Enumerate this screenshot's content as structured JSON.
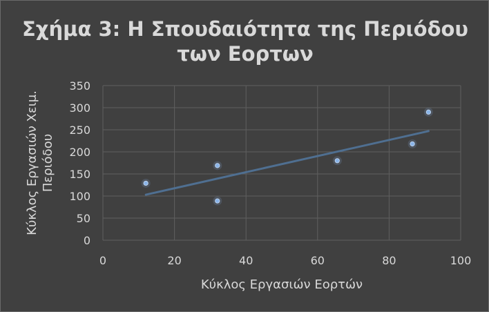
{
  "chart_data": {
    "type": "scatter",
    "title_lines": [
      "Σχήμα 3: Η Σπουδαιότητα της Περιόδου",
      "των Εορτων"
    ],
    "xlabel": "Κύκλος Εργασιών Εορτών",
    "ylabel_lines": [
      "Κύκλος Εργασιών Χειμ.",
      "Περιόδου"
    ],
    "xlim": [
      0,
      100
    ],
    "ylim": [
      0,
      350
    ],
    "x_ticks": [
      0,
      20,
      40,
      60,
      80,
      100
    ],
    "y_ticks": [
      0,
      50,
      100,
      150,
      200,
      250,
      300,
      350
    ],
    "grid": true,
    "points": [
      {
        "x": 12,
        "y": 129
      },
      {
        "x": 32,
        "y": 169
      },
      {
        "x": 32,
        "y": 89
      },
      {
        "x": 65.5,
        "y": 180
      },
      {
        "x": 86.5,
        "y": 218
      },
      {
        "x": 91,
        "y": 290
      }
    ],
    "trendline": {
      "type": "linear",
      "x_start": 12,
      "y_start": 103,
      "x_end": 91,
      "y_end": 247
    },
    "colors": {
      "background": "#404040",
      "text": "#d9d9d9",
      "grid": "#5f5f5f",
      "marker": "#8ab4e8",
      "trendline": "#4f6f91"
    }
  }
}
